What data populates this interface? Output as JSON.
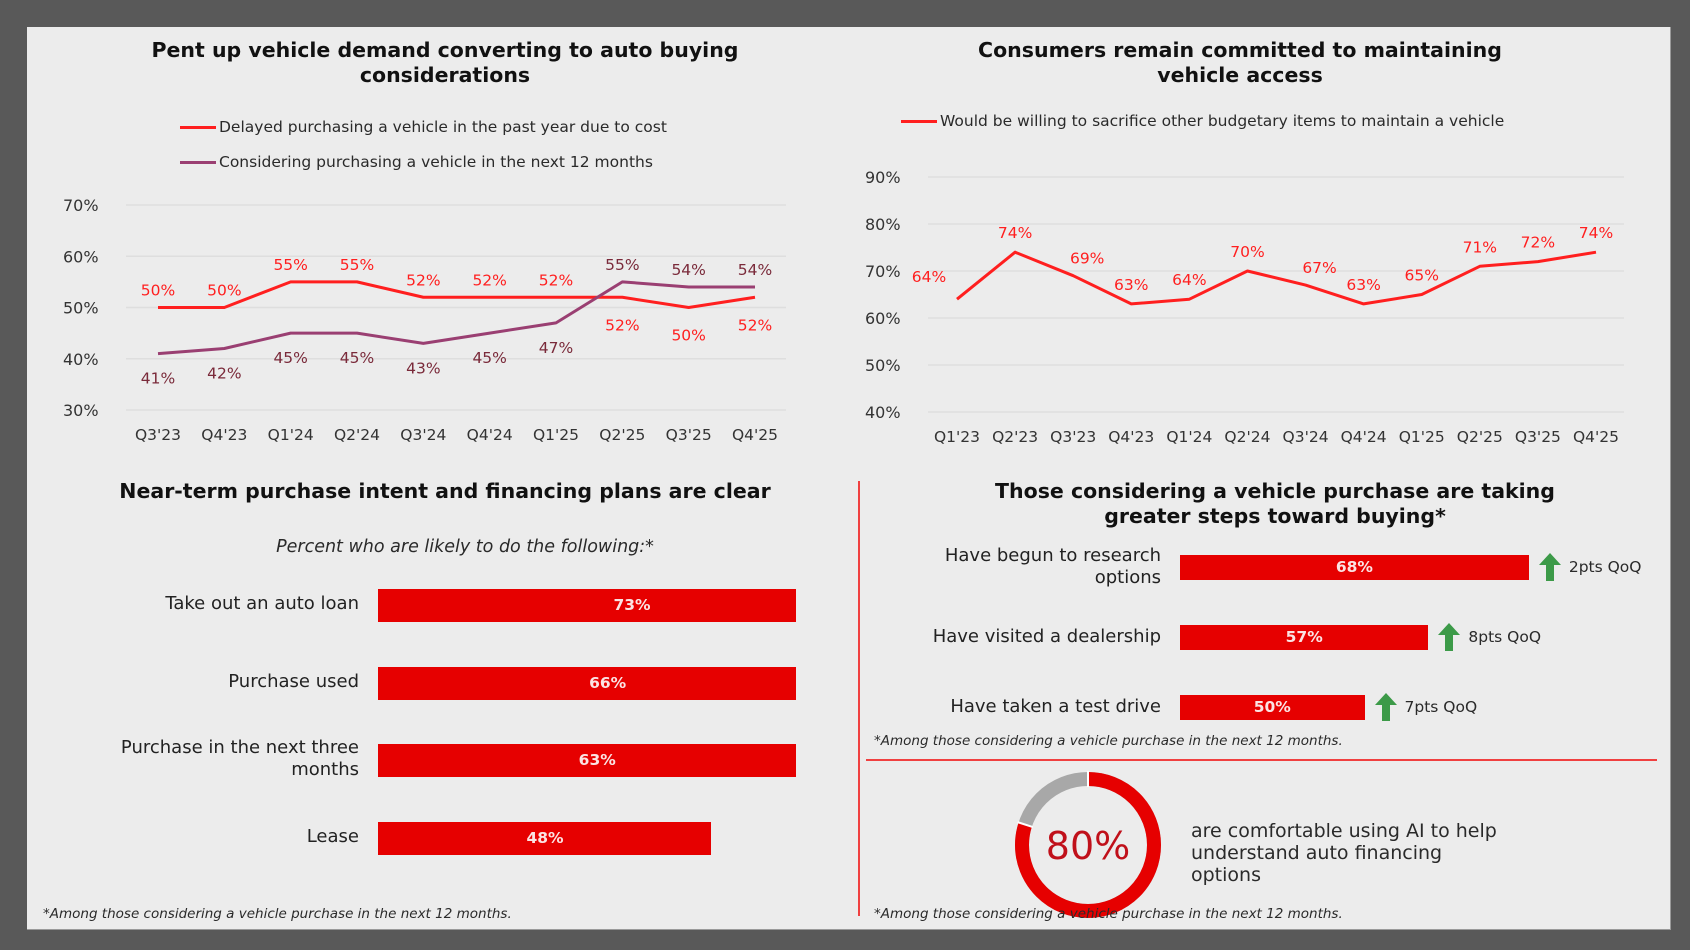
{
  "colors": {
    "red": "#ff1f1f",
    "purple": "#9a3f72",
    "bar_red": "#e60000",
    "donut_gray": "#a8a8a8",
    "donut_text": "#c0101a",
    "arrow_green": "#3c9a48",
    "purple_label": "#7a2a3a"
  },
  "chart_data": [
    {
      "type": "line",
      "title": "Pent up vehicle demand converting to auto buying\nconsiderations",
      "categories": [
        "Q3'23",
        "Q4'23",
        "Q1'24",
        "Q2'24",
        "Q3'24",
        "Q4'24",
        "Q1'25",
        "Q2'25",
        "Q3'25",
        "Q4'25"
      ],
      "series": [
        {
          "name": "Delayed purchasing a vehicle in the past year due to cost",
          "values": [
            50,
            50,
            55,
            55,
            52,
            52,
            52,
            52,
            50,
            52
          ]
        },
        {
          "name": "Considering purchasing a vehicle in the next 12 months",
          "values": [
            41,
            42,
            45,
            45,
            43,
            45,
            47,
            55,
            54,
            54
          ]
        }
      ],
      "yticks": [
        "70%",
        "60%",
        "50%",
        "40%",
        "30%"
      ],
      "ylim": [
        30,
        70
      ],
      "xlabel": "",
      "ylabel": "",
      "grid": true,
      "legend": "top"
    },
    {
      "type": "line",
      "title": "Consumers remain committed to maintaining\nvehicle access",
      "categories": [
        "Q1'23",
        "Q2'23",
        "Q3'23",
        "Q4'23",
        "Q1'24",
        "Q2'24",
        "Q3'24",
        "Q4'24",
        "Q1'25",
        "Q2'25",
        "Q3'25",
        "Q4'25"
      ],
      "series": [
        {
          "name": "Would be willing to sacrifice other budgetary items to maintain a vehicle",
          "values": [
            64,
            74,
            69,
            63,
            64,
            70,
            67,
            63,
            65,
            71,
            72,
            74
          ]
        }
      ],
      "yticks": [
        "90%",
        "80%",
        "70%",
        "60%",
        "50%",
        "40%"
      ],
      "ylim": [
        40,
        90
      ],
      "xlabel": "",
      "ylabel": "",
      "grid": true,
      "legend": "top"
    },
    {
      "type": "bar",
      "orientation": "horizontal",
      "title": "Near-term purchase intent and financing plans are clear",
      "subtitle": "Percent who are likely to do the following:*",
      "categories": [
        "Take out an auto loan",
        "Purchase used",
        "Purchase in the next three\nmonths",
        "Lease"
      ],
      "values": [
        73,
        66,
        63,
        48
      ],
      "value_labels": [
        "73%",
        "66%",
        "63%",
        "48%"
      ],
      "footnote": "*Among those considering a vehicle purchase in the next 12 months."
    },
    {
      "type": "bar",
      "orientation": "horizontal",
      "title": "Those considering a vehicle purchase are taking\ngreater steps toward buying*",
      "categories": [
        "Have begun to research\noptions",
        "Have visited a dealership",
        "Have taken a test drive"
      ],
      "values": [
        68,
        57,
        50
      ],
      "value_labels": [
        "68%",
        "57%",
        "50%"
      ],
      "changes": [
        "2pts QoQ",
        "8pts QoQ",
        "7pts QoQ"
      ],
      "change_direction": [
        "up",
        "up",
        "up"
      ],
      "footnote": "*Among those considering a vehicle purchase in the next 12 months."
    },
    {
      "type": "pie",
      "variant": "donut",
      "value": 80,
      "value_label": "80%",
      "caption": "are comfortable using AI to help\nunderstand auto financing\noptions",
      "footnote": "*Among those considering a vehicle purchase in the next 12 months."
    }
  ]
}
